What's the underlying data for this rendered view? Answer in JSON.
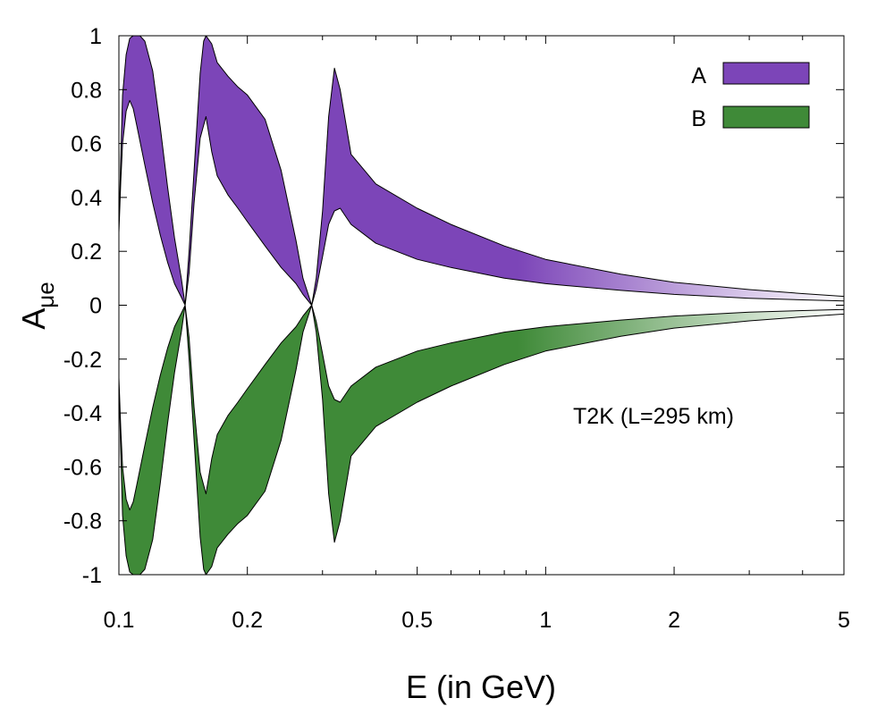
{
  "chart_data": {
    "type": "area",
    "title": "",
    "xlabel": "E (in GeV)",
    "ylabel_main": "A",
    "ylabel_sub": "μe",
    "x_scale": "log",
    "xlim": [
      0.1,
      5
    ],
    "ylim": [
      -1,
      1
    ],
    "x_ticks": [
      {
        "value": 0.1,
        "label": "0.1"
      },
      {
        "value": 0.2,
        "label": "0.2"
      },
      {
        "value": 0.5,
        "label": "0.5"
      },
      {
        "value": 1,
        "label": "1"
      },
      {
        "value": 2,
        "label": "2"
      },
      {
        "value": 5,
        "label": "5"
      }
    ],
    "y_ticks": [
      {
        "value": 1,
        "label": "1"
      },
      {
        "value": 0.8,
        "label": "0.8"
      },
      {
        "value": 0.6,
        "label": "0.6"
      },
      {
        "value": 0.4,
        "label": "0.4"
      },
      {
        "value": 0.2,
        "label": "0.2"
      },
      {
        "value": 0,
        "label": "0"
      },
      {
        "value": -0.2,
        "label": "-0.2"
      },
      {
        "value": -0.4,
        "label": "-0.4"
      },
      {
        "value": -0.6,
        "label": "-0.6"
      },
      {
        "value": -0.8,
        "label": "-0.8"
      },
      {
        "value": -1,
        "label": "-1"
      }
    ],
    "annotation": "T2K (L=295 km)",
    "legend_position": "top-right",
    "series": [
      {
        "name": "A",
        "color": "#7c45b8",
        "fade_color": "#ffffff",
        "upper": [
          [
            0.1,
            0.27
          ],
          [
            0.101,
            0.55
          ],
          [
            0.102,
            0.78
          ],
          [
            0.104,
            0.93
          ],
          [
            0.106,
            0.99
          ],
          [
            0.108,
            1.0
          ],
          [
            0.112,
            1.0
          ],
          [
            0.115,
            0.98
          ],
          [
            0.12,
            0.87
          ],
          [
            0.125,
            0.66
          ],
          [
            0.13,
            0.44
          ],
          [
            0.135,
            0.25
          ],
          [
            0.14,
            0.1
          ],
          [
            0.143,
            0.0
          ],
          [
            0.146,
            0.2
          ],
          [
            0.15,
            0.5
          ],
          [
            0.155,
            0.86
          ],
          [
            0.158,
            0.98
          ],
          [
            0.16,
            1.0
          ],
          [
            0.165,
            0.97
          ],
          [
            0.17,
            0.9
          ],
          [
            0.18,
            0.85
          ],
          [
            0.19,
            0.81
          ],
          [
            0.2,
            0.78
          ],
          [
            0.22,
            0.69
          ],
          [
            0.24,
            0.5
          ],
          [
            0.26,
            0.24
          ],
          [
            0.27,
            0.1
          ],
          [
            0.283,
            0.0
          ],
          [
            0.29,
            0.1
          ],
          [
            0.3,
            0.35
          ],
          [
            0.31,
            0.7
          ],
          [
            0.32,
            0.88
          ],
          [
            0.33,
            0.8
          ],
          [
            0.35,
            0.56
          ],
          [
            0.4,
            0.45
          ],
          [
            0.5,
            0.36
          ],
          [
            0.6,
            0.3
          ],
          [
            0.8,
            0.22
          ],
          [
            1.0,
            0.17
          ],
          [
            1.5,
            0.115
          ],
          [
            2.0,
            0.085
          ],
          [
            3.0,
            0.058
          ],
          [
            4.0,
            0.043
          ],
          [
            5.0,
            0.033
          ]
        ],
        "lower": [
          [
            0.1,
            0.27
          ],
          [
            0.101,
            0.46
          ],
          [
            0.102,
            0.6
          ],
          [
            0.104,
            0.72
          ],
          [
            0.106,
            0.76
          ],
          [
            0.108,
            0.73
          ],
          [
            0.11,
            0.67
          ],
          [
            0.115,
            0.52
          ],
          [
            0.12,
            0.38
          ],
          [
            0.125,
            0.26
          ],
          [
            0.13,
            0.16
          ],
          [
            0.135,
            0.08
          ],
          [
            0.14,
            0.03
          ],
          [
            0.143,
            0.0
          ],
          [
            0.146,
            0.12
          ],
          [
            0.15,
            0.38
          ],
          [
            0.155,
            0.62
          ],
          [
            0.16,
            0.7
          ],
          [
            0.165,
            0.57
          ],
          [
            0.17,
            0.48
          ],
          [
            0.18,
            0.41
          ],
          [
            0.19,
            0.36
          ],
          [
            0.2,
            0.31
          ],
          [
            0.22,
            0.22
          ],
          [
            0.24,
            0.14
          ],
          [
            0.26,
            0.08
          ],
          [
            0.27,
            0.04
          ],
          [
            0.283,
            0.0
          ],
          [
            0.29,
            0.06
          ],
          [
            0.3,
            0.18
          ],
          [
            0.31,
            0.3
          ],
          [
            0.32,
            0.35
          ],
          [
            0.33,
            0.36
          ],
          [
            0.35,
            0.3
          ],
          [
            0.4,
            0.23
          ],
          [
            0.5,
            0.17
          ],
          [
            0.6,
            0.14
          ],
          [
            0.8,
            0.1
          ],
          [
            1.0,
            0.08
          ],
          [
            1.5,
            0.055
          ],
          [
            2.0,
            0.04
          ],
          [
            3.0,
            0.026
          ],
          [
            4.0,
            0.02
          ],
          [
            5.0,
            0.016
          ]
        ]
      },
      {
        "name": "B",
        "color": "#3f8a38",
        "fade_color": "#ffffff",
        "upper": [
          [
            0.1,
            -0.27
          ],
          [
            0.101,
            -0.46
          ],
          [
            0.102,
            -0.6
          ],
          [
            0.104,
            -0.72
          ],
          [
            0.106,
            -0.76
          ],
          [
            0.108,
            -0.73
          ],
          [
            0.11,
            -0.67
          ],
          [
            0.115,
            -0.52
          ],
          [
            0.12,
            -0.38
          ],
          [
            0.125,
            -0.26
          ],
          [
            0.13,
            -0.16
          ],
          [
            0.135,
            -0.08
          ],
          [
            0.14,
            -0.03
          ],
          [
            0.143,
            0.0
          ],
          [
            0.146,
            -0.12
          ],
          [
            0.15,
            -0.38
          ],
          [
            0.155,
            -0.62
          ],
          [
            0.16,
            -0.7
          ],
          [
            0.165,
            -0.57
          ],
          [
            0.17,
            -0.48
          ],
          [
            0.18,
            -0.41
          ],
          [
            0.19,
            -0.36
          ],
          [
            0.2,
            -0.31
          ],
          [
            0.22,
            -0.22
          ],
          [
            0.24,
            -0.14
          ],
          [
            0.26,
            -0.08
          ],
          [
            0.27,
            -0.04
          ],
          [
            0.283,
            0.0
          ],
          [
            0.29,
            -0.06
          ],
          [
            0.3,
            -0.18
          ],
          [
            0.31,
            -0.3
          ],
          [
            0.32,
            -0.35
          ],
          [
            0.33,
            -0.36
          ],
          [
            0.35,
            -0.3
          ],
          [
            0.4,
            -0.23
          ],
          [
            0.5,
            -0.17
          ],
          [
            0.6,
            -0.14
          ],
          [
            0.8,
            -0.1
          ],
          [
            1.0,
            -0.08
          ],
          [
            1.5,
            -0.055
          ],
          [
            2.0,
            -0.04
          ],
          [
            3.0,
            -0.026
          ],
          [
            4.0,
            -0.02
          ],
          [
            5.0,
            -0.016
          ]
        ],
        "lower": [
          [
            0.1,
            -0.27
          ],
          [
            0.101,
            -0.55
          ],
          [
            0.102,
            -0.78
          ],
          [
            0.104,
            -0.93
          ],
          [
            0.106,
            -0.99
          ],
          [
            0.108,
            -1.0
          ],
          [
            0.112,
            -1.0
          ],
          [
            0.115,
            -0.98
          ],
          [
            0.12,
            -0.87
          ],
          [
            0.125,
            -0.66
          ],
          [
            0.13,
            -0.44
          ],
          [
            0.135,
            -0.25
          ],
          [
            0.14,
            -0.1
          ],
          [
            0.143,
            0.0
          ],
          [
            0.146,
            -0.2
          ],
          [
            0.15,
            -0.5
          ],
          [
            0.155,
            -0.86
          ],
          [
            0.158,
            -0.98
          ],
          [
            0.16,
            -1.0
          ],
          [
            0.165,
            -0.97
          ],
          [
            0.17,
            -0.9
          ],
          [
            0.18,
            -0.85
          ],
          [
            0.19,
            -0.81
          ],
          [
            0.2,
            -0.78
          ],
          [
            0.22,
            -0.69
          ],
          [
            0.24,
            -0.5
          ],
          [
            0.26,
            -0.24
          ],
          [
            0.27,
            -0.1
          ],
          [
            0.283,
            0.0
          ],
          [
            0.29,
            -0.1
          ],
          [
            0.3,
            -0.35
          ],
          [
            0.31,
            -0.7
          ],
          [
            0.32,
            -0.88
          ],
          [
            0.33,
            -0.8
          ],
          [
            0.35,
            -0.56
          ],
          [
            0.4,
            -0.45
          ],
          [
            0.5,
            -0.36
          ],
          [
            0.6,
            -0.3
          ],
          [
            0.8,
            -0.22
          ],
          [
            1.0,
            -0.17
          ],
          [
            1.5,
            -0.115
          ],
          [
            2.0,
            -0.085
          ],
          [
            3.0,
            -0.058
          ],
          [
            4.0,
            -0.043
          ],
          [
            5.0,
            -0.033
          ]
        ]
      }
    ]
  }
}
